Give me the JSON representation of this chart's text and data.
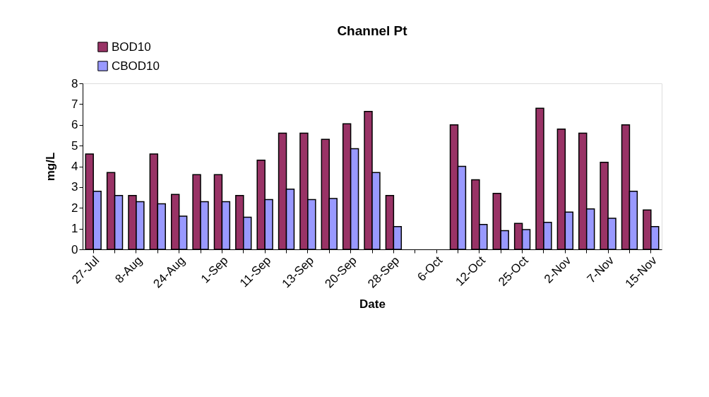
{
  "chart_data": {
    "type": "bar",
    "title": "Channel Pt",
    "xlabel": "Date",
    "ylabel": "mg/L",
    "categories": [
      "27-Jul",
      null,
      "8-Aug",
      null,
      "24-Aug",
      null,
      "1-Sep",
      null,
      "11-Sep",
      null,
      "13-Sep",
      null,
      "20-Sep",
      null,
      "28-Sep",
      null,
      "6-Oct",
      null,
      "12-Oct",
      null,
      "25-Oct",
      null,
      "2-Nov",
      null,
      "7-Nov",
      null,
      "15-Nov"
    ],
    "series": [
      {
        "name": "BOD10",
        "color": "#993366",
        "values": [
          4.6,
          3.7,
          2.6,
          4.6,
          2.65,
          3.6,
          3.6,
          2.6,
          4.3,
          5.6,
          5.6,
          5.3,
          6.05,
          6.65,
          2.6,
          null,
          null,
          6.0,
          3.35,
          2.7,
          1.25,
          6.8,
          5.8,
          5.6,
          4.2,
          6.0,
          1.9
        ]
      },
      {
        "name": "CBOD10",
        "color": "#9999ff",
        "values": [
          2.8,
          2.6,
          2.3,
          2.2,
          1.6,
          2.3,
          2.3,
          1.55,
          2.4,
          2.9,
          2.4,
          2.45,
          4.85,
          3.7,
          1.1,
          null,
          null,
          4.0,
          1.2,
          0.9,
          0.95,
          1.3,
          1.8,
          1.95,
          1.5,
          2.8,
          1.1
        ]
      }
    ],
    "ylim": [
      0,
      8
    ],
    "yticks": [
      0,
      1,
      2,
      3,
      4,
      5,
      6,
      7,
      8
    ],
    "grid": false,
    "legend": "top left"
  }
}
